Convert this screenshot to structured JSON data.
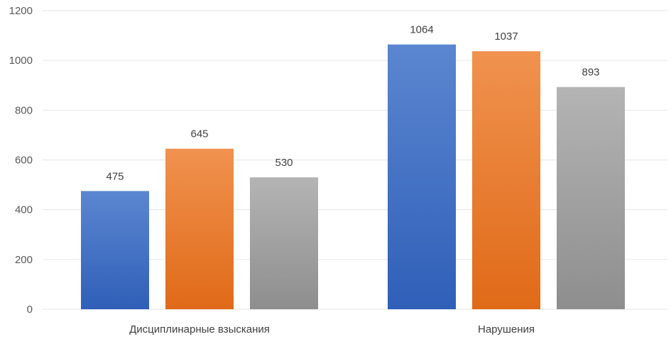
{
  "chart_data": {
    "type": "bar",
    "categories": [
      "Дисциплинарные взыскания",
      "Нарушения"
    ],
    "series": [
      {
        "values": [
          475,
          1064
        ],
        "color": "#4472C4"
      },
      {
        "values": [
          645,
          1037
        ],
        "color": "#ED7D31"
      },
      {
        "values": [
          530,
          893
        ],
        "color": "#A5A5A5"
      }
    ],
    "yticks": [
      "0",
      "200",
      "400",
      "600",
      "800",
      "1000",
      "1200"
    ],
    "ylim": [
      0,
      1200
    ],
    "grid": true,
    "legend": "none",
    "data_labels": true
  }
}
